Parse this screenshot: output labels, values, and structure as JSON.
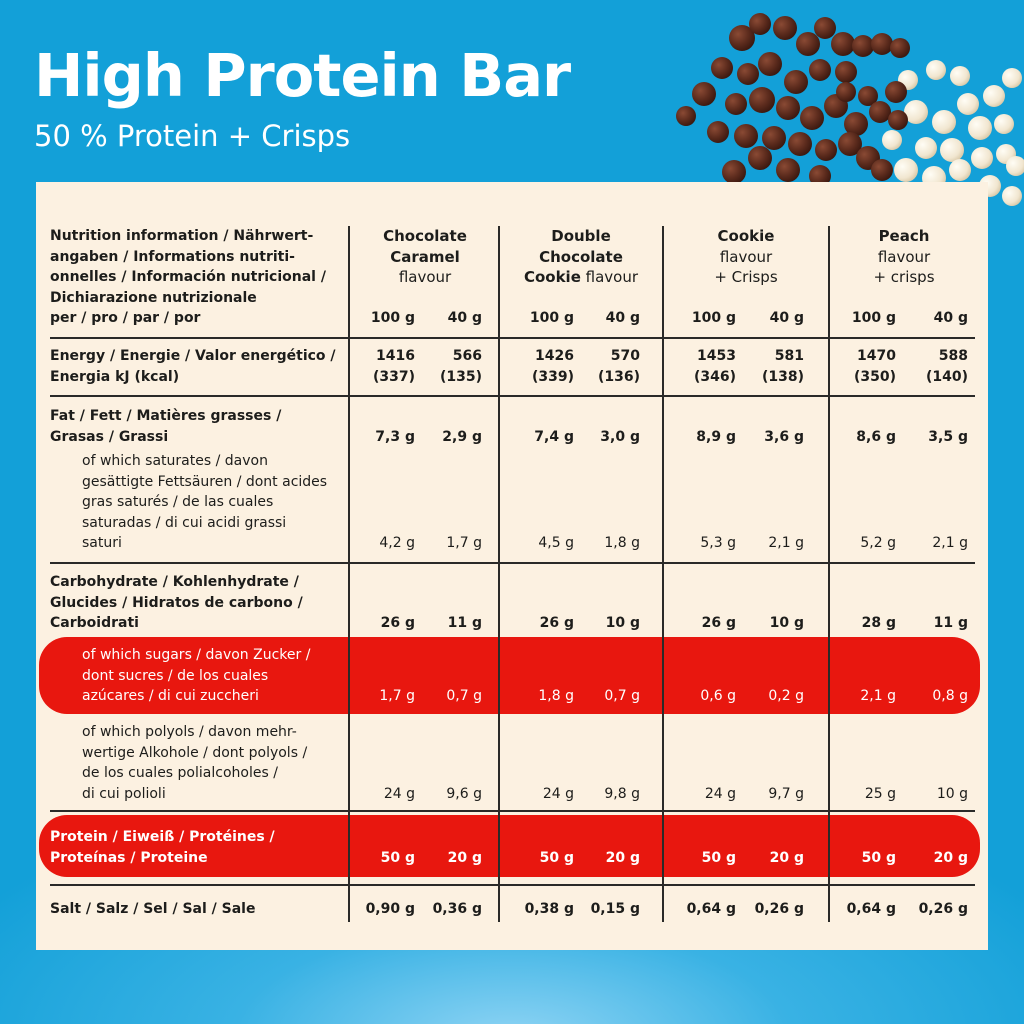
{
  "header": {
    "title": "High Protein Bar",
    "subtitle": "50 % Protein + Crisps"
  },
  "table": {
    "intro_lines": [
      "Nutrition information / Nährwert-",
      "angaben / Informations nutriti-",
      "onnelles / Información nutricional /",
      "Dichiarazione nutrizionale",
      "per / pro / par / por"
    ],
    "products": [
      {
        "bold": [
          "Chocolate",
          "Caramel"
        ],
        "normal": [
          "flavour"
        ]
      },
      {
        "bold": [
          "Double",
          "Chocolate",
          "Cookie"
        ],
        "normal": [
          "flavour"
        ]
      },
      {
        "bold": [
          "Cookie"
        ],
        "normal": [
          "flavour",
          "+ Crisps"
        ]
      },
      {
        "bold": [
          "Peach"
        ],
        "normal": [
          "flavour",
          "+ crisps"
        ]
      }
    ],
    "product_lines": [
      [
        "Chocolate",
        "Caramel",
        "flavour"
      ],
      [
        "Double",
        "Chocolate",
        "Cookie flavour"
      ],
      [
        "Cookie",
        "flavour",
        "+ Crisps"
      ],
      [
        "Peach",
        "flavour",
        "+ crisps"
      ]
    ],
    "portion_headers": [
      "100 g",
      "40 g",
      "100 g",
      "40 g",
      "100 g",
      "40 g",
      "100 g",
      "40 g"
    ],
    "rows": [
      {
        "key": "energy",
        "label_lines": [
          "Energy / Energie / Valor energético /",
          "Energia kJ (kcal)"
        ],
        "values_line1": [
          "1416",
          "566",
          "1426",
          "570",
          "1453",
          "581",
          "1470",
          "588"
        ],
        "values_line2": [
          "(337)",
          "(135)",
          "(339)",
          "(136)",
          "(346)",
          "(138)",
          "(350)",
          "(140)"
        ]
      },
      {
        "key": "fat",
        "label_lines": [
          "Fat / Fett / Matières grasses /",
          "Grasas / Grassi"
        ],
        "values": [
          "7,3 g",
          "2,9 g",
          "7,4 g",
          "3,0 g",
          "8,9 g",
          "3,6 g",
          "8,6 g",
          "3,5 g"
        ]
      },
      {
        "key": "saturates",
        "label_lines": [
          "of which saturates / davon",
          "gesättigte Fettsäuren / dont acides",
          "gras saturés / de las cuales",
          "saturadas / di cui acidi grassi",
          "saturi"
        ],
        "values": [
          "4,2 g",
          "1,7 g",
          "4,5 g",
          "1,8 g",
          "5,3 g",
          "2,1 g",
          "5,2 g",
          "2,1 g"
        ]
      },
      {
        "key": "carbohydrate",
        "label_lines": [
          "Carbohydrate / Kohlenhydrate /",
          "Glucides / Hidratos de carbono /",
          "Carboidrati"
        ],
        "values": [
          "26 g",
          "11 g",
          "26 g",
          "10 g",
          "26 g",
          "10 g",
          "28 g",
          "11 g"
        ]
      },
      {
        "key": "sugars",
        "label_lines": [
          "of which sugars / davon Zucker /",
          "dont sucres / de los cuales",
          "azúcares / di cui zuccheri"
        ],
        "values": [
          "1,7 g",
          "0,7 g",
          "1,8 g",
          "0,7 g",
          "0,6 g",
          "0,2 g",
          "2,1 g",
          "0,8 g"
        ]
      },
      {
        "key": "polyols",
        "label_lines": [
          "of which polyols / davon mehr-",
          "wertige Alkohole / dont polyols /",
          "de los cuales polialcoholes /",
          "di cui polioli"
        ],
        "values": [
          "24 g",
          "9,6 g",
          "24 g",
          "9,8 g",
          "24 g",
          "9,7 g",
          "25 g",
          "10 g"
        ]
      },
      {
        "key": "protein",
        "label_lines": [
          "Protein / Eiweiß / Protéines /",
          "Proteínas / Proteine"
        ],
        "values": [
          "50 g",
          "20 g",
          "50 g",
          "20 g",
          "50 g",
          "20 g",
          "50 g",
          "20 g"
        ]
      },
      {
        "key": "salt",
        "label_lines": [
          "Salt / Salz / Sel / Sal / Sale"
        ],
        "values": [
          "0,90 g",
          "0,36 g",
          "0,38 g",
          "0,15 g",
          "0,64 g",
          "0,26 g",
          "0,64 g",
          "0,26 g"
        ]
      }
    ]
  },
  "colors": {
    "background": "#13a0d8",
    "panel": "#fcf1e1",
    "highlight": "#e8170f",
    "text": "#1d1d1b"
  }
}
